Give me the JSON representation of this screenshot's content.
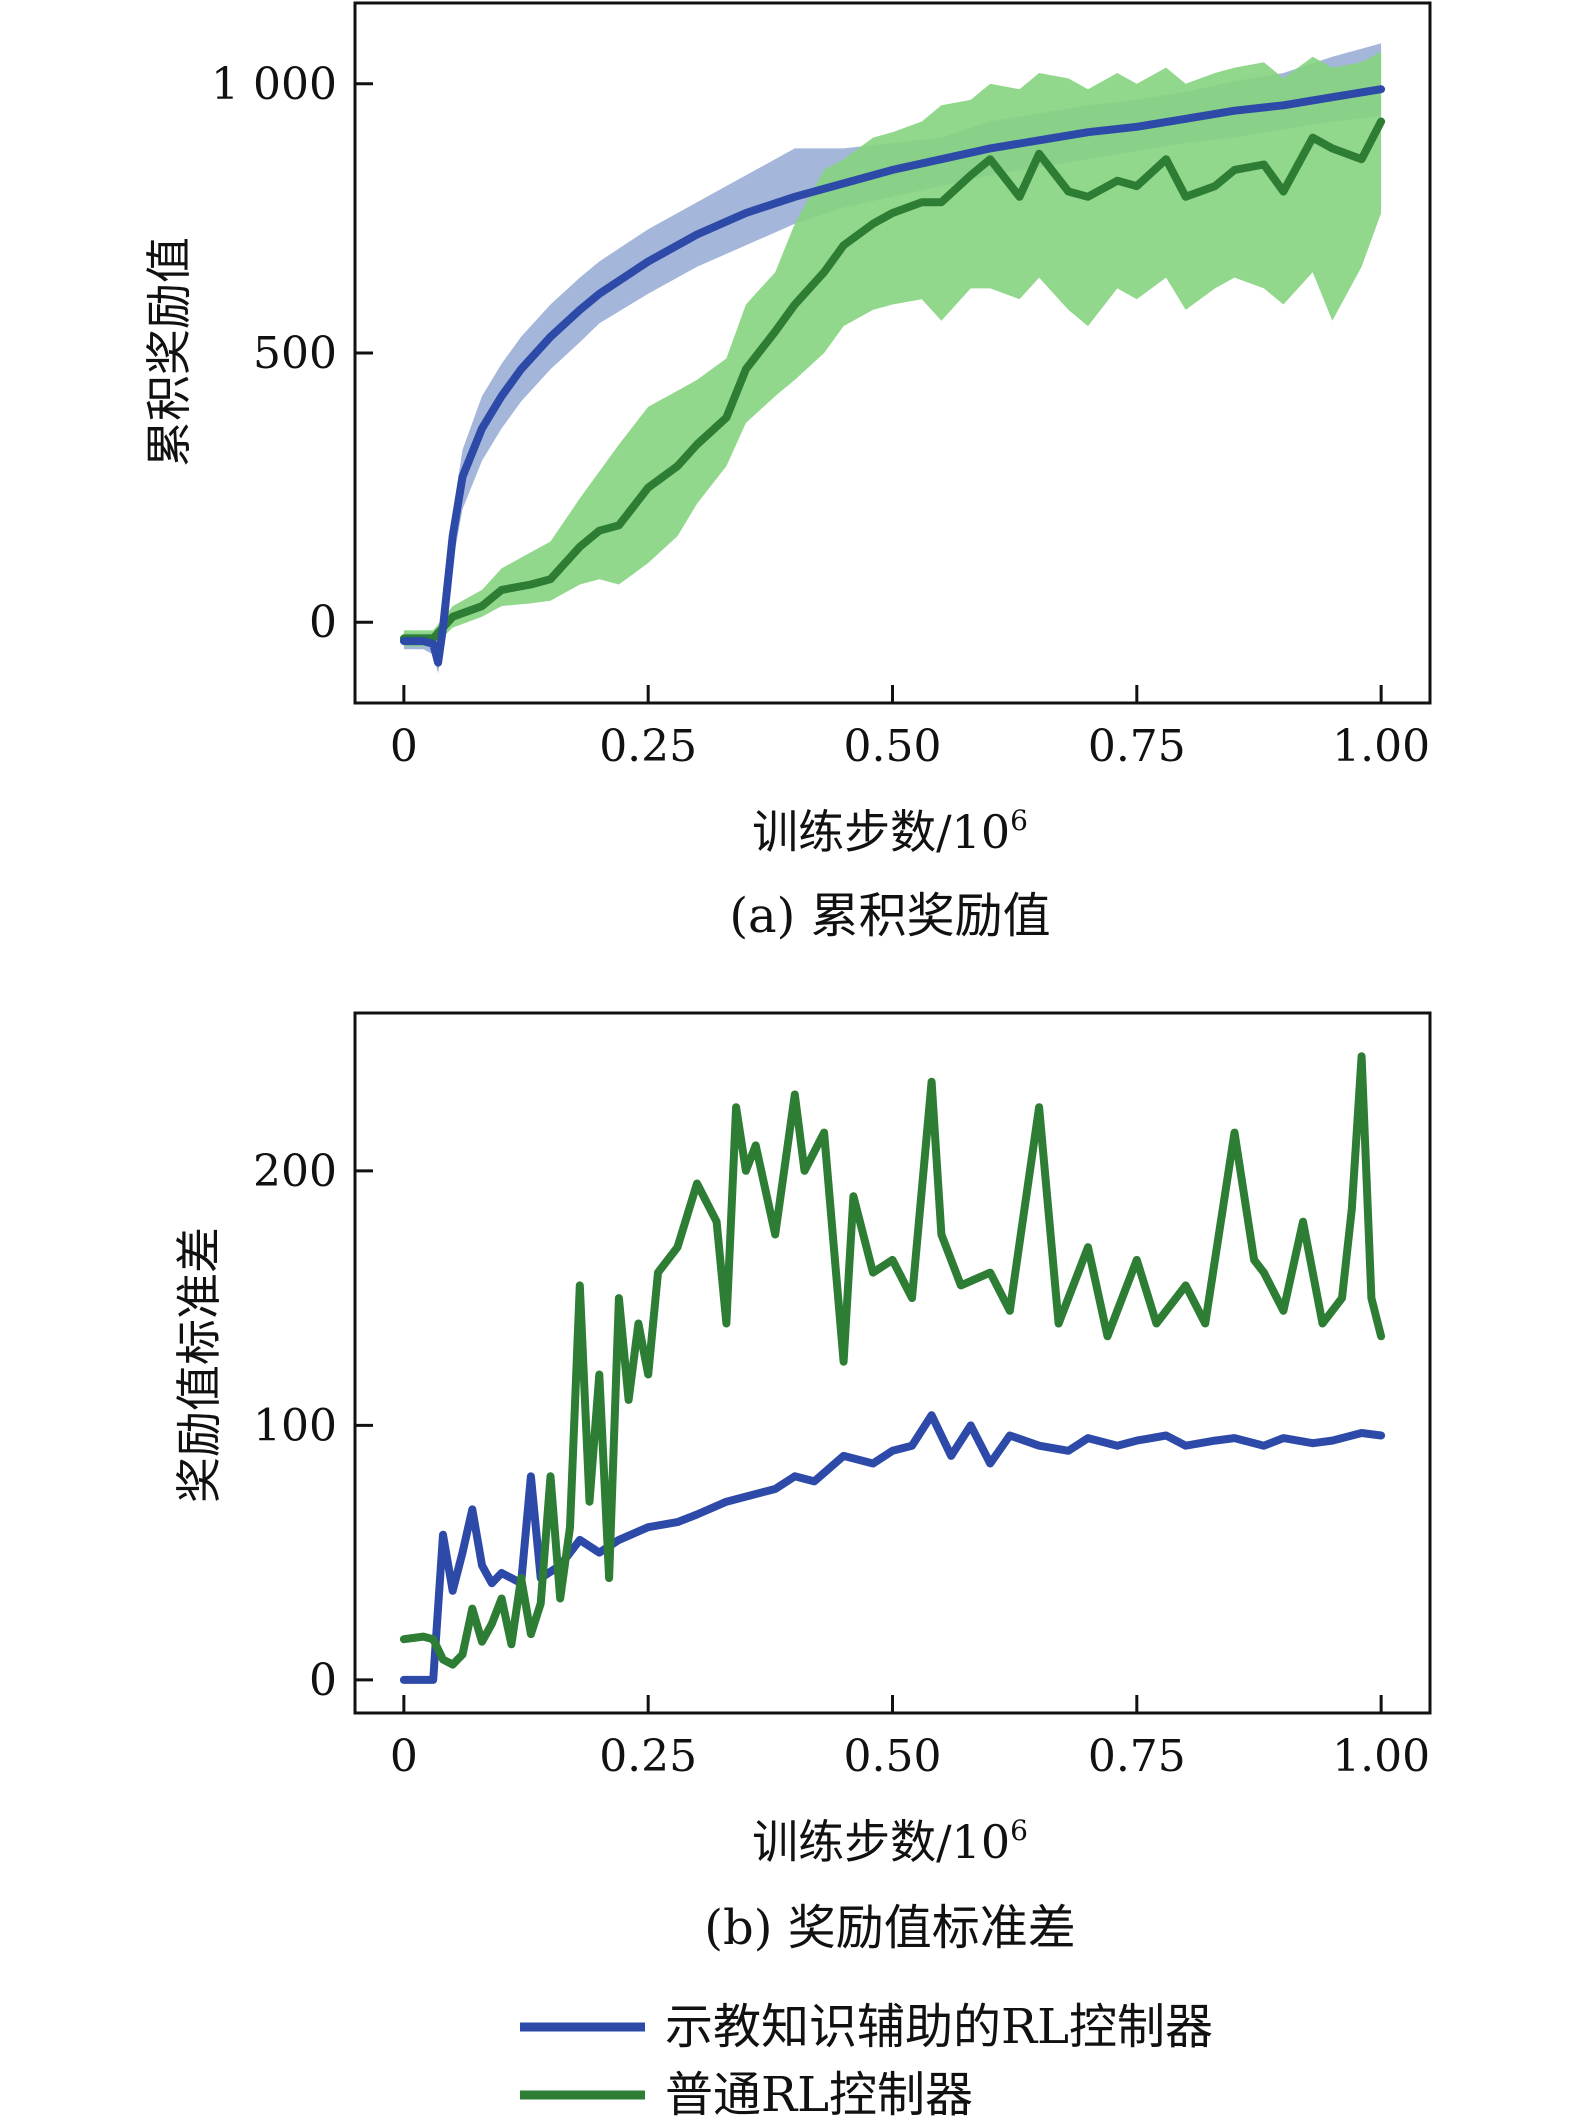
{
  "colors": {
    "blue_line": "#2e4aa8",
    "blue_band": "#9aaed6",
    "green_line": "#2e7d34",
    "green_band": "#86d47f"
  },
  "legend": {
    "items": [
      {
        "label": "示教知识辅助的RL控制器",
        "color": "#2e4aa8"
      },
      {
        "label": "普通RL控制器",
        "color": "#2e7d34"
      }
    ]
  },
  "chart_data": [
    {
      "type": "line",
      "caption": "(a) 累积奖励值",
      "xlabel": "训练步数/10",
      "xlabel_sup": "6",
      "ylabel": "累积奖励值",
      "xlim": [
        -0.05,
        1.05
      ],
      "ylim": [
        -150,
        1150
      ],
      "xticks": [
        0,
        0.25,
        0.5,
        0.75,
        1.0
      ],
      "xtick_labels": [
        "0",
        "0.25",
        "0.50",
        "0.75",
        "1.00"
      ],
      "yticks": [
        0,
        500,
        1000
      ],
      "ytick_labels": [
        "0",
        "500",
        "1 000"
      ],
      "grid": false,
      "series": [
        {
          "name": "示教知识辅助的RL控制器",
          "color": "#2e4aa8",
          "band_color": "#9aaed6",
          "x": [
            0,
            0.02,
            0.03,
            0.035,
            0.04,
            0.05,
            0.06,
            0.08,
            0.1,
            0.12,
            0.15,
            0.18,
            0.2,
            0.25,
            0.3,
            0.35,
            0.4,
            0.45,
            0.5,
            0.55,
            0.6,
            0.65,
            0.7,
            0.75,
            0.8,
            0.85,
            0.9,
            0.95,
            1.0
          ],
          "mean": [
            -35,
            -35,
            -40,
            -75,
            -10,
            160,
            270,
            360,
            420,
            470,
            530,
            580,
            610,
            670,
            720,
            760,
            790,
            815,
            840,
            860,
            880,
            895,
            910,
            920,
            935,
            950,
            960,
            975,
            990
          ],
          "lower": [
            -50,
            -50,
            -60,
            -95,
            -40,
            110,
            210,
            300,
            360,
            410,
            470,
            520,
            555,
            610,
            660,
            700,
            740,
            770,
            790,
            810,
            830,
            845,
            860,
            875,
            890,
            900,
            915,
            930,
            940
          ],
          "upper": [
            -20,
            -20,
            -20,
            -55,
            20,
            200,
            320,
            420,
            480,
            530,
            590,
            640,
            670,
            730,
            780,
            830,
            880,
            880,
            890,
            900,
            930,
            945,
            960,
            970,
            985,
            1005,
            1020,
            1050,
            1075
          ]
        },
        {
          "name": "普通RL控制器",
          "color": "#2e7d34",
          "band_color": "#86d47f",
          "x": [
            0,
            0.03,
            0.05,
            0.08,
            0.1,
            0.13,
            0.15,
            0.18,
            0.2,
            0.22,
            0.25,
            0.28,
            0.3,
            0.33,
            0.35,
            0.38,
            0.4,
            0.43,
            0.45,
            0.48,
            0.5,
            0.53,
            0.55,
            0.58,
            0.6,
            0.63,
            0.65,
            0.68,
            0.7,
            0.73,
            0.75,
            0.78,
            0.8,
            0.83,
            0.85,
            0.88,
            0.9,
            0.93,
            0.95,
            0.98,
            1.0
          ],
          "mean": [
            -30,
            -30,
            10,
            30,
            60,
            70,
            80,
            140,
            170,
            180,
            250,
            290,
            330,
            380,
            470,
            540,
            590,
            650,
            700,
            740,
            760,
            780,
            780,
            830,
            860,
            790,
            870,
            800,
            790,
            820,
            810,
            860,
            790,
            810,
            840,
            850,
            800,
            900,
            880,
            860,
            930
          ],
          "lower": [
            -45,
            -45,
            -10,
            10,
            30,
            35,
            40,
            70,
            80,
            70,
            110,
            160,
            220,
            290,
            370,
            420,
            450,
            500,
            550,
            580,
            590,
            600,
            560,
            620,
            620,
            600,
            640,
            580,
            550,
            620,
            600,
            640,
            580,
            620,
            640,
            620,
            590,
            650,
            560,
            660,
            760
          ],
          "upper": [
            -15,
            -15,
            30,
            60,
            100,
            130,
            150,
            230,
            280,
            330,
            400,
            430,
            450,
            490,
            590,
            650,
            740,
            840,
            860,
            900,
            910,
            930,
            960,
            970,
            1000,
            990,
            1020,
            1010,
            990,
            1020,
            1000,
            1030,
            1000,
            1020,
            1030,
            1040,
            1010,
            1050,
            1030,
            1040,
            1060
          ]
        }
      ]
    },
    {
      "type": "line",
      "caption": "(b) 奖励值标准差",
      "xlabel": "训练步数/10",
      "xlabel_sup": "6",
      "ylabel": "奖励值标准差",
      "xlim": [
        -0.05,
        1.05
      ],
      "ylim": [
        -13,
        262
      ],
      "xticks": [
        0,
        0.25,
        0.5,
        0.75,
        1.0
      ],
      "xtick_labels": [
        "0",
        "0.25",
        "0.50",
        "0.75",
        "1.00"
      ],
      "yticks": [
        0,
        100,
        200
      ],
      "ytick_labels": [
        "0",
        "100",
        "200"
      ],
      "grid": false,
      "series": [
        {
          "name": "示教知识辅助的RL控制器",
          "color": "#2e4aa8",
          "x": [
            0,
            0.02,
            0.03,
            0.04,
            0.05,
            0.06,
            0.07,
            0.08,
            0.09,
            0.1,
            0.11,
            0.12,
            0.13,
            0.14,
            0.16,
            0.18,
            0.2,
            0.22,
            0.25,
            0.28,
            0.3,
            0.33,
            0.35,
            0.38,
            0.4,
            0.42,
            0.45,
            0.48,
            0.5,
            0.52,
            0.54,
            0.56,
            0.58,
            0.6,
            0.62,
            0.65,
            0.68,
            0.7,
            0.73,
            0.75,
            0.78,
            0.8,
            0.83,
            0.85,
            0.88,
            0.9,
            0.93,
            0.95,
            0.98,
            1.0
          ],
          "y": [
            0,
            0,
            0,
            57,
            35,
            50,
            67,
            45,
            38,
            42,
            40,
            38,
            80,
            40,
            45,
            55,
            50,
            55,
            60,
            62,
            65,
            70,
            72,
            75,
            80,
            78,
            88,
            85,
            90,
            92,
            104,
            88,
            100,
            85,
            96,
            92,
            90,
            95,
            92,
            94,
            96,
            92,
            94,
            95,
            92,
            95,
            93,
            94,
            97,
            96
          ]
        },
        {
          "name": "普通RL控制器",
          "color": "#2e7d34",
          "x": [
            0,
            0.02,
            0.03,
            0.04,
            0.05,
            0.06,
            0.07,
            0.08,
            0.09,
            0.1,
            0.11,
            0.12,
            0.13,
            0.14,
            0.15,
            0.16,
            0.17,
            0.18,
            0.19,
            0.2,
            0.21,
            0.22,
            0.23,
            0.24,
            0.25,
            0.26,
            0.28,
            0.3,
            0.32,
            0.33,
            0.34,
            0.35,
            0.36,
            0.38,
            0.4,
            0.41,
            0.43,
            0.45,
            0.46,
            0.48,
            0.5,
            0.52,
            0.54,
            0.55,
            0.57,
            0.6,
            0.62,
            0.65,
            0.67,
            0.7,
            0.72,
            0.75,
            0.77,
            0.8,
            0.82,
            0.85,
            0.87,
            0.88,
            0.9,
            0.92,
            0.94,
            0.96,
            0.97,
            0.98,
            0.99,
            1.0
          ],
          "y": [
            16,
            17,
            16,
            8,
            6,
            10,
            28,
            15,
            22,
            32,
            14,
            40,
            18,
            30,
            80,
            32,
            60,
            155,
            70,
            120,
            40,
            150,
            110,
            140,
            120,
            160,
            170,
            195,
            180,
            140,
            225,
            200,
            210,
            175,
            230,
            200,
            215,
            125,
            190,
            160,
            165,
            150,
            235,
            175,
            155,
            160,
            145,
            225,
            140,
            170,
            135,
            165,
            140,
            155,
            140,
            215,
            165,
            160,
            145,
            180,
            140,
            150,
            185,
            245,
            150,
            135
          ]
        }
      ]
    }
  ]
}
